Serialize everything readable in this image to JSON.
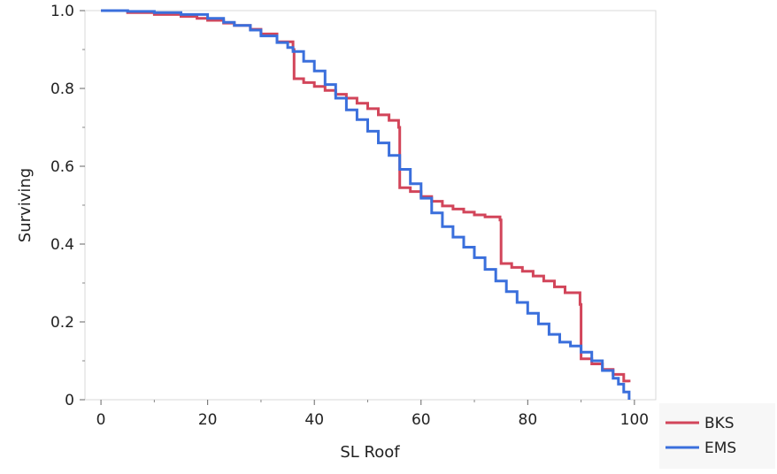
{
  "chart_data": {
    "type": "line",
    "step": true,
    "title": "",
    "xlabel": "SL Roof",
    "ylabel": "Surviving",
    "xlim": [
      -3,
      104
    ],
    "ylim": [
      0,
      1.0
    ],
    "x_ticks": [
      0,
      20,
      40,
      60,
      80,
      100
    ],
    "x_tick_labels": [
      "0",
      "20",
      "40",
      "60",
      "80",
      "100"
    ],
    "y_ticks": [
      0,
      0.2,
      0.4,
      0.6,
      0.8,
      1.0
    ],
    "y_tick_labels": [
      "0",
      "0.2",
      "0.4",
      "0.6",
      "0.8",
      "1.0"
    ],
    "grid": false,
    "legend_position": "bottom-right-outside",
    "series": [
      {
        "name": "BKS",
        "color": "#d2455a",
        "points": [
          [
            0,
            1.0
          ],
          [
            5,
            0.995
          ],
          [
            10,
            0.99
          ],
          [
            15,
            0.985
          ],
          [
            18,
            0.98
          ],
          [
            20,
            0.975
          ],
          [
            23,
            0.968
          ],
          [
            25,
            0.962
          ],
          [
            28,
            0.952
          ],
          [
            30,
            0.94
          ],
          [
            33,
            0.92
          ],
          [
            36,
            0.9
          ],
          [
            36.2,
            0.825
          ],
          [
            38,
            0.815
          ],
          [
            40,
            0.805
          ],
          [
            42,
            0.795
          ],
          [
            44,
            0.785
          ],
          [
            46,
            0.775
          ],
          [
            48,
            0.762
          ],
          [
            50,
            0.748
          ],
          [
            52,
            0.732
          ],
          [
            54,
            0.718
          ],
          [
            55.8,
            0.7
          ],
          [
            56,
            0.545
          ],
          [
            58,
            0.535
          ],
          [
            60,
            0.522
          ],
          [
            62,
            0.51
          ],
          [
            64,
            0.498
          ],
          [
            66,
            0.49
          ],
          [
            68,
            0.482
          ],
          [
            70,
            0.475
          ],
          [
            72,
            0.47
          ],
          [
            74.8,
            0.462
          ],
          [
            75,
            0.35
          ],
          [
            77,
            0.34
          ],
          [
            79,
            0.33
          ],
          [
            81,
            0.318
          ],
          [
            83,
            0.305
          ],
          [
            85,
            0.29
          ],
          [
            87,
            0.275
          ],
          [
            89.8,
            0.245
          ],
          [
            90,
            0.105
          ],
          [
            92,
            0.092
          ],
          [
            94,
            0.078
          ],
          [
            96,
            0.065
          ],
          [
            98,
            0.048
          ],
          [
            99,
            0.045
          ]
        ]
      },
      {
        "name": "EMS",
        "color": "#3a6fdc",
        "points": [
          [
            0,
            1.0
          ],
          [
            5,
            0.998
          ],
          [
            10,
            0.995
          ],
          [
            15,
            0.99
          ],
          [
            20,
            0.98
          ],
          [
            23,
            0.97
          ],
          [
            25,
            0.962
          ],
          [
            28,
            0.95
          ],
          [
            30,
            0.935
          ],
          [
            33,
            0.918
          ],
          [
            35,
            0.905
          ],
          [
            36,
            0.895
          ],
          [
            38,
            0.87
          ],
          [
            40,
            0.845
          ],
          [
            42,
            0.81
          ],
          [
            44,
            0.775
          ],
          [
            46,
            0.745
          ],
          [
            48,
            0.72
          ],
          [
            50,
            0.69
          ],
          [
            52,
            0.66
          ],
          [
            54,
            0.628
          ],
          [
            56,
            0.592
          ],
          [
            58,
            0.555
          ],
          [
            60,
            0.518
          ],
          [
            62,
            0.48
          ],
          [
            64,
            0.445
          ],
          [
            66,
            0.418
          ],
          [
            68,
            0.392
          ],
          [
            70,
            0.365
          ],
          [
            72,
            0.335
          ],
          [
            74,
            0.305
          ],
          [
            76,
            0.278
          ],
          [
            78,
            0.25
          ],
          [
            80,
            0.222
          ],
          [
            82,
            0.195
          ],
          [
            84,
            0.168
          ],
          [
            86,
            0.148
          ],
          [
            88,
            0.138
          ],
          [
            90,
            0.122
          ],
          [
            92,
            0.1
          ],
          [
            94,
            0.075
          ],
          [
            96,
            0.055
          ],
          [
            97,
            0.04
          ],
          [
            98,
            0.02
          ],
          [
            99,
            0.0
          ]
        ]
      }
    ]
  }
}
